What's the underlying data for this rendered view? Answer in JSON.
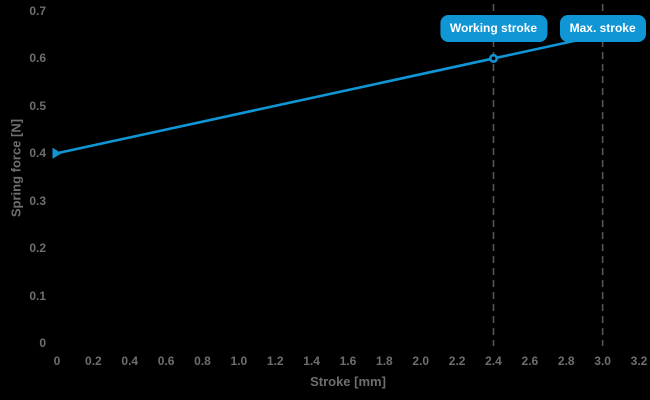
{
  "chart_data": {
    "type": "line",
    "title": "",
    "xlabel": "Stroke [mm]",
    "ylabel": "Spring force [N]",
    "xlim": [
      0,
      3.2
    ],
    "ylim": [
      0,
      0.7
    ],
    "x_tick_labels": [
      "0",
      "0.2",
      "0.4",
      "0.6",
      "0.8",
      "1.0",
      "1.2",
      "1.4",
      "1.6",
      "1.8",
      "2.0",
      "2.2",
      "2.4",
      "2.6",
      "2.8",
      "3.0",
      "3.2"
    ],
    "y_tick_labels": [
      "0",
      "0.1",
      "0.2",
      "0.3",
      "0.4",
      "0.5",
      "0.6",
      "0.7"
    ],
    "grid": "off",
    "legend": "none",
    "series": [
      {
        "name": "spring-force-line",
        "x": [
          0,
          2.4,
          3.0
        ],
        "y": [
          0.4,
          0.6,
          0.65
        ]
      }
    ],
    "markers": [
      {
        "shape": "triangle-right",
        "name": "series-start-marker",
        "x": 0,
        "y": 0.4
      },
      {
        "shape": "open-circle",
        "name": "working-point-marker",
        "x": 2.4,
        "y": 0.6
      }
    ],
    "annotations": [
      {
        "label": "Working stroke",
        "x": 2.4
      },
      {
        "label": "Max. stroke",
        "x": 3.0
      }
    ],
    "colors": {
      "background": "#000000",
      "line": "#1095d5",
      "badge_fill": "#1095d5",
      "badge_text": "#ffffff",
      "tick_text": "#6e6e6e",
      "guide_dash": "#555555"
    }
  }
}
